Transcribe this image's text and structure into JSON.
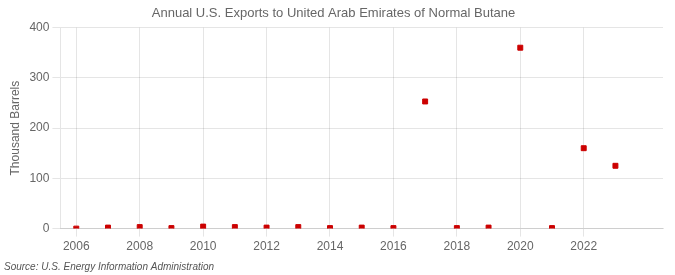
{
  "chart_data": {
    "type": "scatter",
    "title": "Annual U.S. Exports to United Arab Emirates of Normal Butane",
    "ylabel": "Thousand Barrels",
    "annotations": [
      "Source: U.S. Energy Information Administration"
    ],
    "x": [
      2006,
      2007,
      2008,
      2009,
      2010,
      2011,
      2012,
      2013,
      2014,
      2015,
      2016,
      2017,
      2018,
      2019,
      2020,
      2021,
      2022,
      2023
    ],
    "values": [
      0,
      2,
      3,
      1,
      4,
      3,
      2,
      3,
      1,
      2,
      1,
      253,
      1,
      2,
      360,
      1,
      160,
      125
    ],
    "color": "#cc0000",
    "marker": "square",
    "xlim": [
      2005.5,
      2024.5
    ],
    "ylim": [
      0,
      400
    ],
    "xticks": [
      2006,
      2008,
      2010,
      2012,
      2014,
      2016,
      2018,
      2020,
      2022
    ],
    "yticks": [
      0,
      100,
      200,
      300,
      400
    ],
    "grid": true
  }
}
